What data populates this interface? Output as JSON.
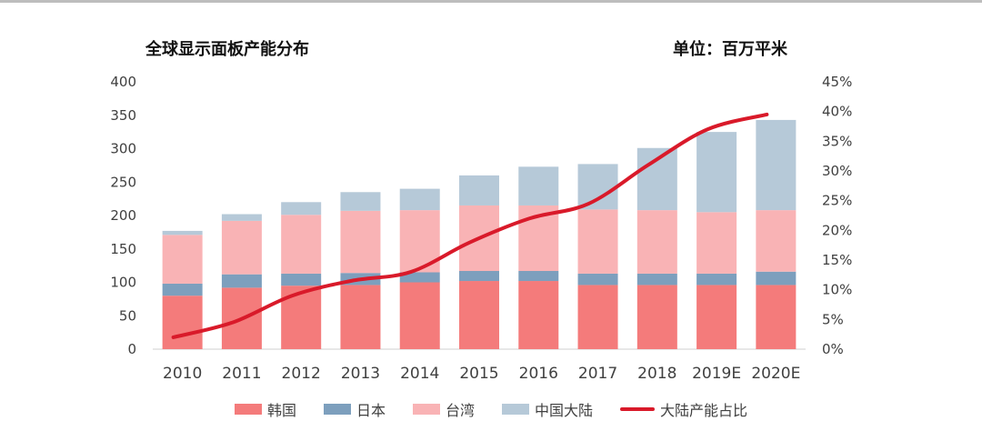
{
  "header": {
    "title": "全球显示面板产能分布",
    "unit": "单位：百万平米"
  },
  "chart_data": {
    "type": "bar",
    "stacked": true,
    "categories": [
      "2010",
      "2011",
      "2012",
      "2013",
      "2014",
      "2015",
      "2016",
      "2017",
      "2018",
      "2019E",
      "2020E"
    ],
    "series": [
      {
        "name": "韩国",
        "kind": "bar",
        "color": "#f47b7b",
        "values": [
          80,
          92,
          95,
          96,
          100,
          102,
          102,
          96,
          96,
          96,
          96
        ]
      },
      {
        "name": "日本",
        "kind": "bar",
        "color": "#7d9fbd",
        "values": [
          18,
          20,
          18,
          18,
          15,
          15,
          15,
          17,
          17,
          17,
          20
        ]
      },
      {
        "name": "台湾",
        "kind": "bar",
        "color": "#f9b3b5",
        "values": [
          73,
          80,
          88,
          93,
          93,
          98,
          98,
          96,
          95,
          92,
          92
        ]
      },
      {
        "name": "中国大陆",
        "kind": "bar",
        "color": "#b6c9d8",
        "values": [
          6,
          10,
          19,
          28,
          32,
          45,
          58,
          68,
          93,
          120,
          135
        ]
      },
      {
        "name": "大陆产能占比",
        "kind": "line",
        "axis": "right",
        "color": "#d91a2a",
        "values": [
          2,
          4.5,
          9,
          11.5,
          13,
          18,
          22,
          24.5,
          31,
          37,
          39.5
        ]
      }
    ],
    "ylim": [
      0,
      400
    ],
    "yticks": [
      "0",
      "50",
      "100",
      "150",
      "200",
      "250",
      "300",
      "350",
      "400"
    ],
    "y2lim": [
      0,
      45
    ],
    "y2ticks": [
      "0%",
      "5%",
      "10%",
      "15%",
      "20%",
      "25%",
      "30%",
      "35%",
      "40%",
      "45%"
    ],
    "grid": false,
    "legend_position": "bottom"
  }
}
